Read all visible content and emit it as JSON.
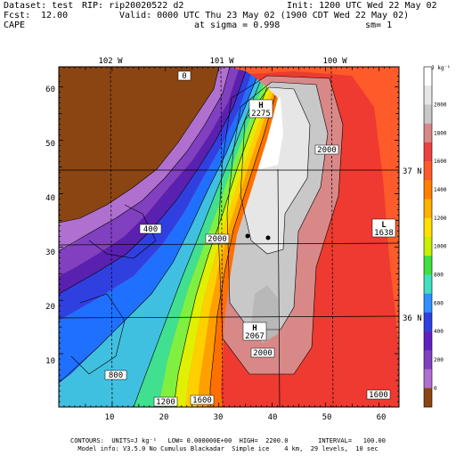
{
  "header": {
    "dataset": "Dataset: test",
    "rip": "RIP: rip20020522 d2",
    "init": "Init: 1200 UTC Wed 22 May 02",
    "fcst_label": "Fcst:",
    "fcst_value": "12.00",
    "valid": "Valid: 0000 UTC Thu 23 May 02 (1900 CDT Wed 22 May 02)",
    "field": "CAPE",
    "level": "at sigma = 0.998",
    "sm": "sm= 1"
  },
  "map": {
    "lon_labels": [
      "102 W",
      "101 W",
      "100 W"
    ],
    "lat_labels": [
      "37 N",
      "36 N"
    ],
    "x_ticks": [
      "10",
      "20",
      "30",
      "40",
      "50",
      "60"
    ],
    "y_ticks": [
      "10",
      "20",
      "30",
      "40",
      "50",
      "60"
    ],
    "contour_labels": [
      "0",
      "400",
      "800",
      "1200",
      "1600",
      "2000",
      "2000",
      "2000",
      "1600"
    ],
    "extrema": [
      {
        "sym": "H",
        "value": "2275"
      },
      {
        "sym": "L",
        "value": "1638"
      },
      {
        "sym": "H",
        "value": "2067"
      }
    ]
  },
  "colorbar": {
    "unit": "J kg⁻¹",
    "labels": [
      "2000",
      "1800",
      "1600",
      "1400",
      "1200",
      "1000",
      "800",
      "600",
      "400",
      "200",
      "0"
    ],
    "colors": [
      "#ffffff",
      "#e6e6e6",
      "#c8c8c8",
      "#d98888",
      "#ee4040",
      "#ff5a2a",
      "#ff8000",
      "#ffb000",
      "#ffe000",
      "#c8f000",
      "#40e040",
      "#40e0c0",
      "#3090ff",
      "#3040e0",
      "#6020c0",
      "#8040c0",
      "#b070d0",
      "#8b4513"
    ]
  },
  "footer": {
    "line1": "CONTOURS:  UNITS=J kg⁻¹   LOW= 0.000000E+00  HIGH=  2200.0        INTERVAL=   100.00",
    "line2": "Model info: V3.5.0 No Cumulus Blackadar  Simple ice    4 km,  29 levels,  10 sec"
  }
}
